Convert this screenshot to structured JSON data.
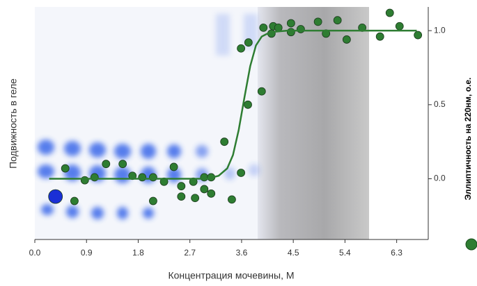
{
  "chart_data": {
    "type": "scatter",
    "xlabel": "Концентрация мочевины, М",
    "ylabel": "Подвижность в геле",
    "y2label": "Эллиптичность  на 220нм, о.е.",
    "xlim": [
      0,
      6.85
    ],
    "xticks": [
      {
        "value": 0,
        "label": "0.0"
      },
      0.9,
      1.8,
      2.7,
      3.6,
      4.5,
      5.4,
      6.3
    ],
    "y2lim": [
      -0.41,
      1.16
    ],
    "y2ticks": [
      {
        "value": 0,
        "label": "0.0"
      },
      0.5,
      {
        "value": 1,
        "label": "1.0"
      }
    ],
    "series": [
      {
        "type": "scatter",
        "axis": "y2",
        "color": "#2e7d32",
        "x": [
          0.53,
          0.69,
          0.87,
          1.04,
          1.24,
          1.53,
          1.7,
          1.87,
          2.06,
          2.06,
          2.25,
          2.42,
          2.55,
          2.55,
          2.76,
          2.79,
          2.95,
          2.95,
          3.07,
          3.07,
          3.3,
          3.43,
          3.59,
          3.59,
          3.72,
          3.71,
          3.95,
          3.98,
          4.12,
          4.15,
          4.24,
          4.46,
          4.46,
          4.63,
          4.93,
          5.07,
          5.27,
          5.43,
          5.7,
          6.01,
          6.18,
          6.35,
          6.67
        ],
        "values": [
          0.07,
          -0.15,
          -0.01,
          0.01,
          0.1,
          0.1,
          0.02,
          0.01,
          -0.15,
          0.01,
          -0.02,
          0.08,
          -0.05,
          -0.12,
          -0.02,
          -0.13,
          -0.07,
          0.01,
          0.01,
          -0.1,
          0.25,
          -0.14,
          0.04,
          0.88,
          0.92,
          0.5,
          0.59,
          1.02,
          0.98,
          1.03,
          1.02,
          1.05,
          0.99,
          1.01,
          1.06,
          0.98,
          1.07,
          0.94,
          1.02,
          0.96,
          1.12,
          1.03,
          0.97
        ]
      },
      {
        "type": "line",
        "axis": "y2",
        "color": "#2e7d32",
        "x": [
          0.25,
          3.0,
          3.2,
          3.35,
          3.45,
          3.55,
          3.65,
          3.75,
          3.85,
          3.95,
          4.1,
          4.4,
          6.65
        ],
        "values": [
          0,
          0,
          0.02,
          0.07,
          0.16,
          0.33,
          0.55,
          0.76,
          0.9,
          0.96,
          0.99,
          1.0,
          1.0
        ]
      },
      {
        "type": "scatter",
        "axis": "y2",
        "color": "#1a2fd6",
        "size": 10,
        "x": [
          0.36
        ],
        "values": [
          -0.12
        ]
      }
    ]
  }
}
